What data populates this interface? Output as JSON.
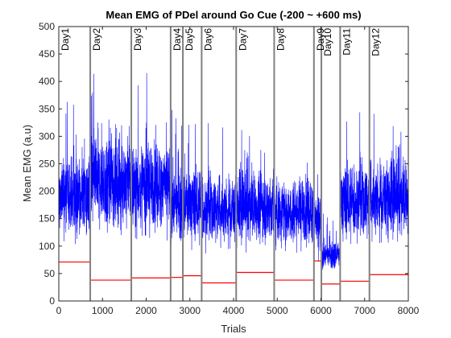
{
  "chart_data": {
    "type": "line",
    "title": "Mean EMG of PDel around Go Cue (-200 ~ +600 ms)",
    "xlabel": "Trials",
    "ylabel": "Mean EMG (a.u)",
    "xlim": [
      0,
      8000
    ],
    "ylim": [
      0,
      500
    ],
    "xticks": [
      0,
      1000,
      2000,
      3000,
      4000,
      5000,
      6000,
      7000,
      8000
    ],
    "yticks": [
      0,
      50,
      100,
      150,
      200,
      250,
      300,
      350,
      400,
      450,
      500
    ],
    "grid": false,
    "colors": {
      "emg": "#0000ff",
      "baseline": "#ff0000",
      "boundary": "#808080"
    },
    "days": [
      {
        "label": "Day1",
        "start": 0,
        "end": 720,
        "center": 190,
        "spread": 65,
        "floor": 110,
        "peak": 370,
        "baseline": 71
      },
      {
        "label": "Day2",
        "start": 720,
        "end": 1660,
        "center": 215,
        "spread": 75,
        "floor": 110,
        "peak": 440,
        "baseline": 38
      },
      {
        "label": "Day3",
        "start": 1660,
        "end": 2560,
        "center": 210,
        "spread": 70,
        "floor": 110,
        "peak": 430,
        "baseline": 42
      },
      {
        "label": "Day4",
        "start": 2560,
        "end": 2840,
        "center": 180,
        "spread": 60,
        "floor": 90,
        "peak": 350,
        "baseline": 43
      },
      {
        "label": "Day5",
        "start": 2840,
        "end": 3270,
        "center": 175,
        "spread": 60,
        "floor": 85,
        "peak": 340,
        "baseline": 46
      },
      {
        "label": "Day6",
        "start": 3270,
        "end": 4060,
        "center": 165,
        "spread": 55,
        "floor": 85,
        "peak": 325,
        "baseline": 33
      },
      {
        "label": "Day7",
        "start": 4060,
        "end": 4930,
        "center": 170,
        "spread": 58,
        "floor": 90,
        "peak": 345,
        "baseline": 52
      },
      {
        "label": "Day8",
        "start": 4930,
        "end": 5840,
        "center": 165,
        "spread": 55,
        "floor": 85,
        "peak": 325,
        "baseline": 38
      },
      {
        "label": "Day9",
        "start": 5840,
        "end": 6010,
        "center": 140,
        "spread": 55,
        "floor": 75,
        "peak": 280,
        "baseline": 73
      },
      {
        "label": "Day10",
        "start": 6010,
        "end": 6440,
        "center": 85,
        "spread": 22,
        "floor": 58,
        "peak": 160,
        "baseline": 31
      },
      {
        "label": "Day11",
        "start": 6440,
        "end": 7110,
        "center": 180,
        "spread": 62,
        "floor": 110,
        "peak": 345,
        "baseline": 36
      },
      {
        "label": "Day12",
        "start": 7110,
        "end": 8000,
        "center": 185,
        "spread": 62,
        "floor": 110,
        "peak": 350,
        "baseline": 48
      }
    ]
  }
}
